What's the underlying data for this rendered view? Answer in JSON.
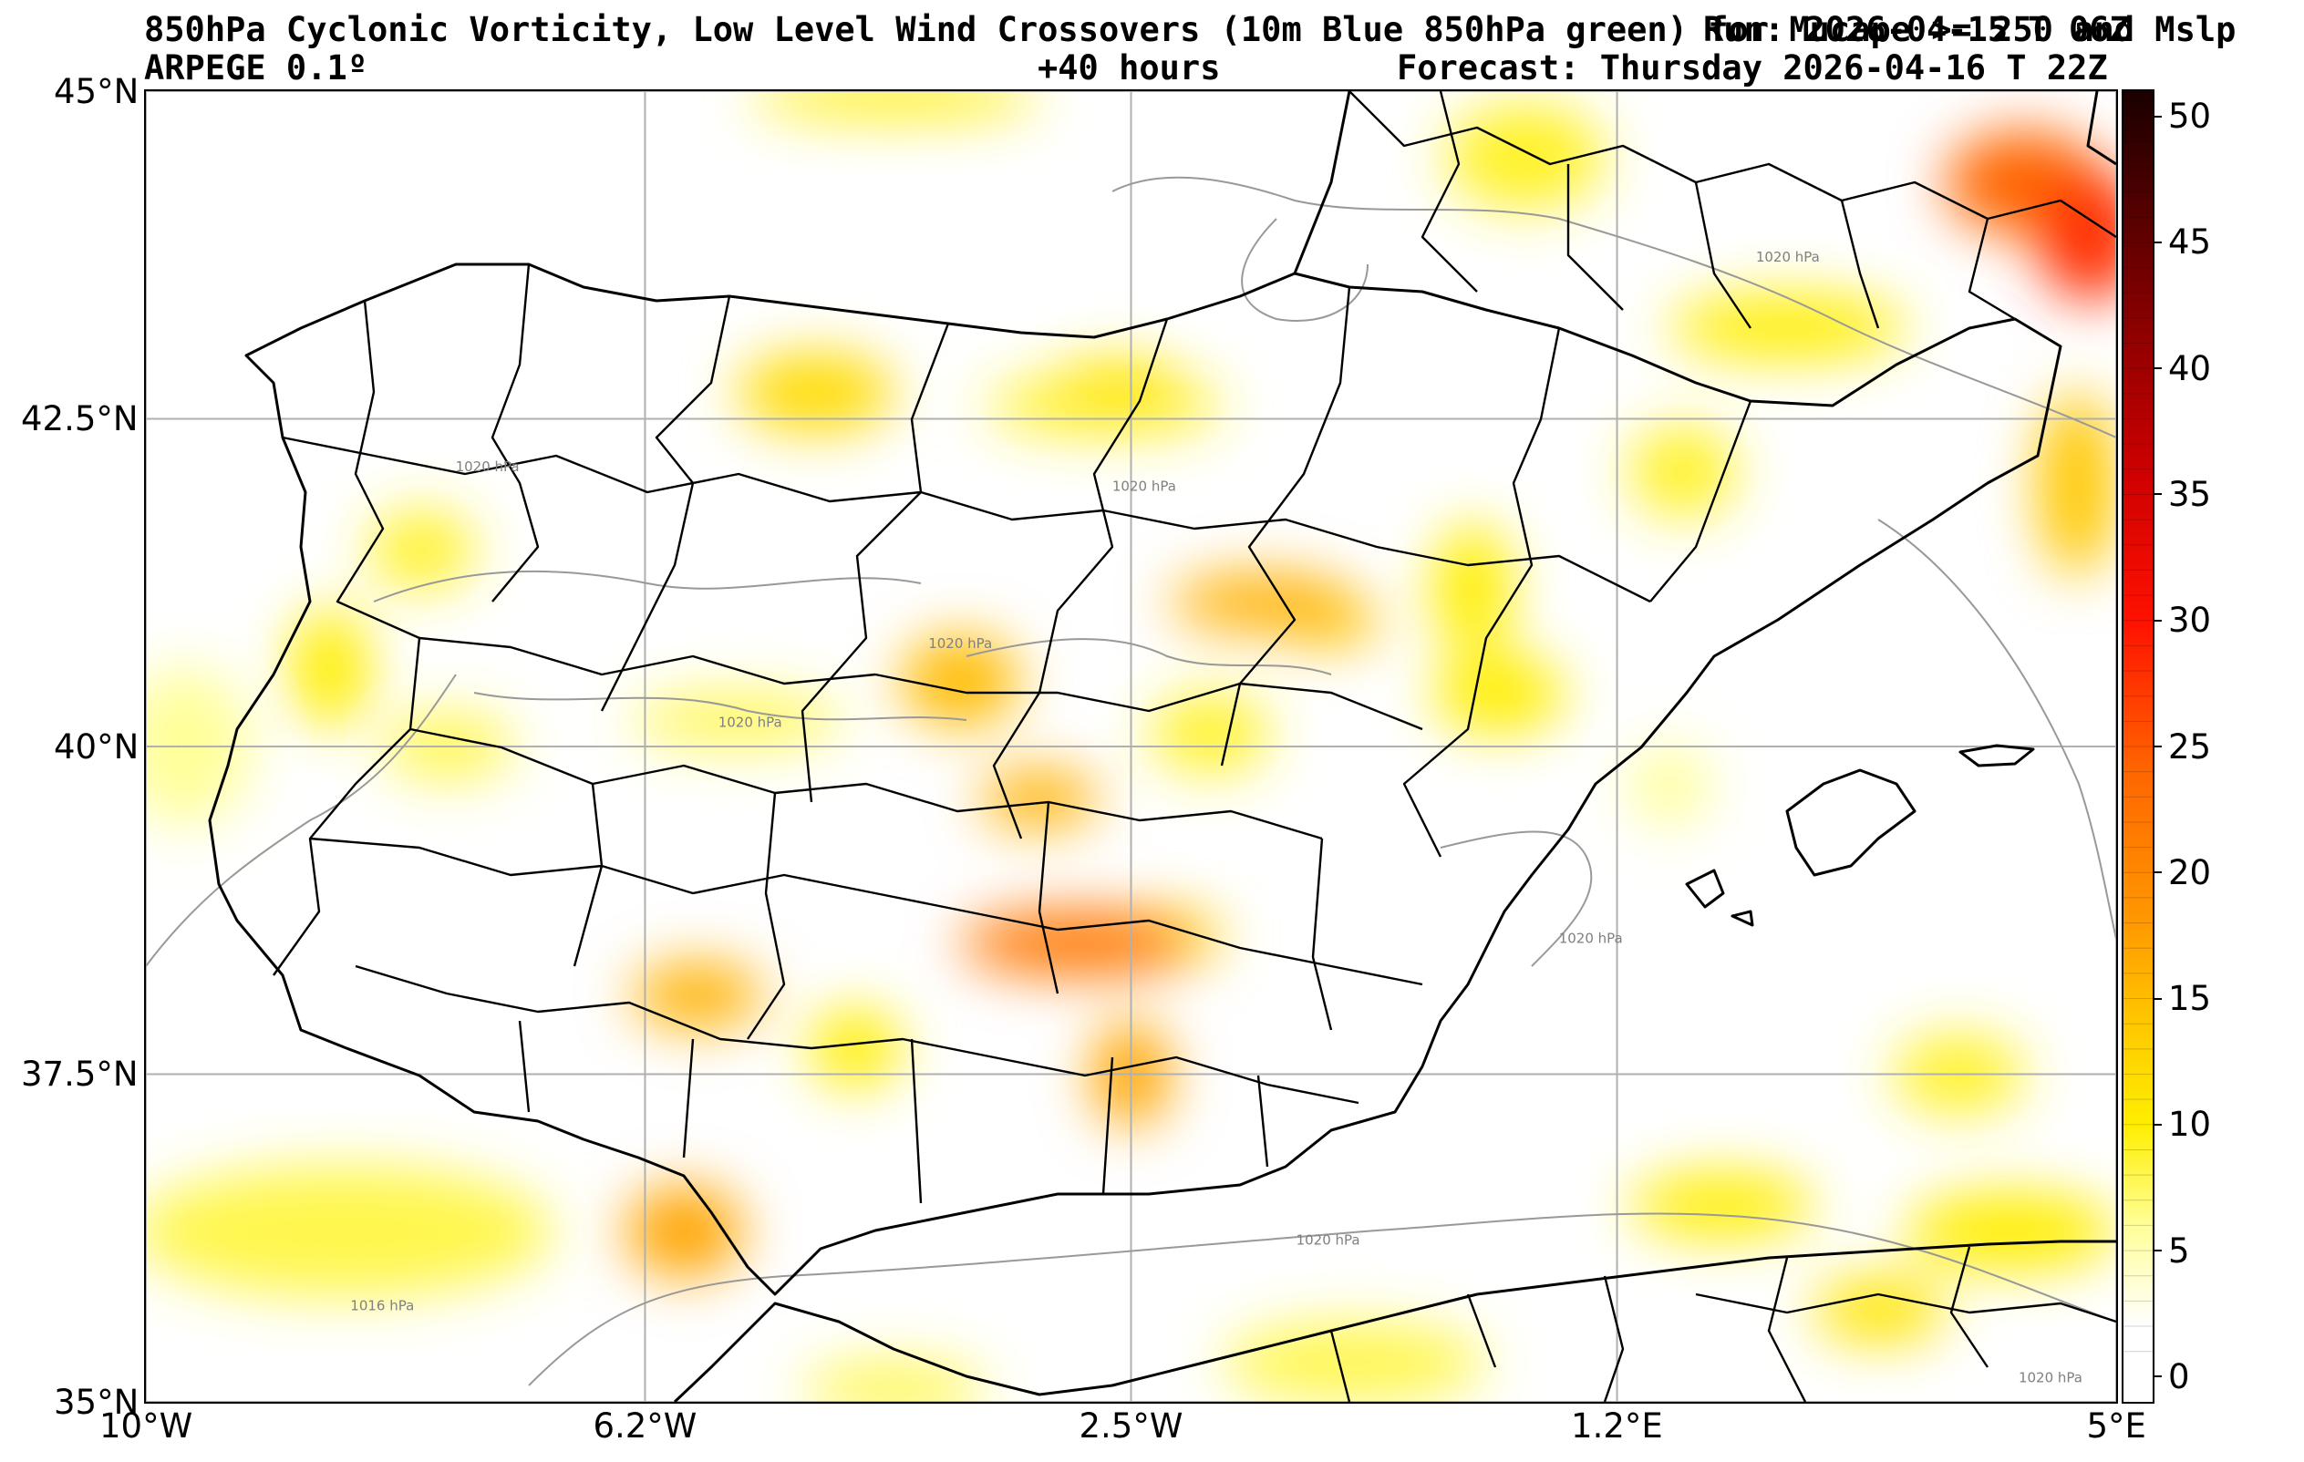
{
  "header": {
    "title_line1": "850hPa Cyclonic Vorticity, Low Level Wind Crossovers (10m Blue 850hPa green) for Mucape >= 250 and Mslp",
    "run_label": "Run: 2026-04-15 T 06Z",
    "model_label": "ARPEGE 0.1º",
    "lead_time_label": "+40 hours",
    "forecast_label": "Forecast: Thursday 2026-04-16 T 22Z"
  },
  "map": {
    "lon_range": [
      -10,
      5
    ],
    "lat_range": [
      35,
      45
    ],
    "x_ticks": [
      {
        "value": -10,
        "label": "10°W"
      },
      {
        "value": -6.2,
        "label": "6.2°W"
      },
      {
        "value": -2.5,
        "label": "2.5°W"
      },
      {
        "value": 1.2,
        "label": "1.2°E"
      },
      {
        "value": 5,
        "label": "5°E"
      }
    ],
    "y_ticks": [
      {
        "value": 45,
        "label": "45°N"
      },
      {
        "value": 42.5,
        "label": "42.5°N"
      },
      {
        "value": 40,
        "label": "40°N"
      },
      {
        "value": 37.5,
        "label": "37.5°N"
      },
      {
        "value": 35,
        "label": "35°N"
      }
    ],
    "isobar_labels": [
      {
        "text": "1020 hPa",
        "lon": -7.4,
        "lat": 42.1
      },
      {
        "text": "1020 hPa",
        "lon": -2.4,
        "lat": 41.95
      },
      {
        "text": "1020 hPa",
        "lon": -3.8,
        "lat": 40.75
      },
      {
        "text": "1020 hPa",
        "lon": -5.4,
        "lat": 40.15
      },
      {
        "text": "1020 hPa",
        "lon": 2.5,
        "lat": 43.7
      },
      {
        "text": "1020 hPa",
        "lon": 1.0,
        "lat": 38.5
      },
      {
        "text": "1020 hPa",
        "lon": -1.0,
        "lat": 36.2
      },
      {
        "text": "1016 hPa",
        "lon": -8.2,
        "lat": 35.7
      },
      {
        "text": "1020 hPa",
        "lon": 4.5,
        "lat": 35.15
      }
    ],
    "vorticity_blobs": [
      {
        "lon": -4.9,
        "lat": 42.7,
        "rx": 0.6,
        "ry": 0.3,
        "v": 12
      },
      {
        "lon": -2.7,
        "lat": 42.6,
        "rx": 0.9,
        "ry": 0.22,
        "v": 9
      },
      {
        "lon": -2.6,
        "lat": 42.75,
        "rx": 0.5,
        "ry": 0.2,
        "v": 11
      },
      {
        "lon": -1.5,
        "lat": 41.1,
        "rx": 0.7,
        "ry": 0.22,
        "v": 16
      },
      {
        "lon": -1.0,
        "lat": 40.95,
        "rx": 0.4,
        "ry": 0.18,
        "v": 14
      },
      {
        "lon": -3.8,
        "lat": 40.5,
        "rx": 0.45,
        "ry": 0.35,
        "v": 15
      },
      {
        "lon": -5.5,
        "lat": 40.2,
        "rx": 0.8,
        "ry": 0.2,
        "v": 8
      },
      {
        "lon": -3.2,
        "lat": 39.6,
        "rx": 0.45,
        "ry": 0.22,
        "v": 16
      },
      {
        "lon": -2.9,
        "lat": 38.5,
        "rx": 0.9,
        "ry": 0.25,
        "v": 22
      },
      {
        "lon": -2.3,
        "lat": 38.55,
        "rx": 0.5,
        "ry": 0.2,
        "v": 12
      },
      {
        "lon": -5.8,
        "lat": 38.1,
        "rx": 0.5,
        "ry": 0.25,
        "v": 16
      },
      {
        "lon": -4.6,
        "lat": 37.7,
        "rx": 0.35,
        "ry": 0.3,
        "v": 10
      },
      {
        "lon": -2.5,
        "lat": 37.5,
        "rx": 0.3,
        "ry": 0.4,
        "v": 17
      },
      {
        "lon": -5.9,
        "lat": 36.3,
        "rx": 0.45,
        "ry": 0.35,
        "v": 17
      },
      {
        "lon": -8.5,
        "lat": 36.3,
        "rx": 1.6,
        "ry": 0.5,
        "v": 8
      },
      {
        "lon": -7.9,
        "lat": 41.5,
        "rx": 0.4,
        "ry": 0.3,
        "v": 9
      },
      {
        "lon": -7.7,
        "lat": 40.0,
        "rx": 0.5,
        "ry": 0.25,
        "v": 8
      },
      {
        "lon": -8.6,
        "lat": 40.6,
        "rx": 0.3,
        "ry": 0.45,
        "v": 10
      },
      {
        "lon": 0.3,
        "lat": 40.4,
        "rx": 0.5,
        "ry": 0.3,
        "v": 10
      },
      {
        "lon": 0.1,
        "lat": 41.2,
        "rx": 0.3,
        "ry": 0.5,
        "v": 10
      },
      {
        "lon": -1.9,
        "lat": 40.1,
        "rx": 0.45,
        "ry": 0.3,
        "v": 9
      },
      {
        "lon": 1.7,
        "lat": 42.1,
        "rx": 0.4,
        "ry": 0.35,
        "v": 9
      },
      {
        "lon": 0.5,
        "lat": 44.5,
        "rx": 0.6,
        "ry": 0.4,
        "v": 9
      },
      {
        "lon": -4.3,
        "lat": 44.95,
        "rx": 1.1,
        "ry": 0.15,
        "v": 10
      },
      {
        "lon": 2.5,
        "lat": 43.2,
        "rx": 0.9,
        "ry": 0.25,
        "v": 10
      },
      {
        "lon": 4.3,
        "lat": 44.3,
        "rx": 0.6,
        "ry": 0.4,
        "v": 24
      },
      {
        "lon": 4.8,
        "lat": 43.9,
        "rx": 0.4,
        "ry": 0.5,
        "v": 28
      },
      {
        "lon": 4.7,
        "lat": 42.0,
        "rx": 0.3,
        "ry": 0.7,
        "v": 14
      },
      {
        "lon": 3.8,
        "lat": 37.5,
        "rx": 0.5,
        "ry": 0.3,
        "v": 9
      },
      {
        "lon": 4.2,
        "lat": 36.3,
        "rx": 0.8,
        "ry": 0.3,
        "v": 10
      },
      {
        "lon": 3.2,
        "lat": 35.7,
        "rx": 0.5,
        "ry": 0.25,
        "v": 11
      },
      {
        "lon": 2.0,
        "lat": 36.5,
        "rx": 0.7,
        "ry": 0.25,
        "v": 10
      },
      {
        "lon": -0.8,
        "lat": 35.3,
        "rx": 1.0,
        "ry": 0.3,
        "v": 8
      },
      {
        "lon": -4.3,
        "lat": 35.1,
        "rx": 0.7,
        "ry": 0.2,
        "v": 8
      },
      {
        "lon": -9.7,
        "lat": 40.0,
        "rx": 0.5,
        "ry": 0.6,
        "v": 6
      },
      {
        "lon": 1.6,
        "lat": 39.7,
        "rx": 0.3,
        "ry": 0.3,
        "v": 6
      }
    ],
    "colors": {
      "frame": "#000000",
      "grid": "#b0b0b0",
      "borders": "#000000",
      "isobars": "#999999"
    }
  },
  "colorbar": {
    "range": [
      -1,
      51
    ],
    "tick_values": [
      0,
      5,
      10,
      15,
      20,
      25,
      30,
      35,
      40,
      45,
      50
    ],
    "color_stops": [
      {
        "value": -1,
        "color": "#ffffff"
      },
      {
        "value": 2,
        "color": "#ffffff"
      },
      {
        "value": 6,
        "color": "#ffff99"
      },
      {
        "value": 10,
        "color": "#ffee00"
      },
      {
        "value": 14,
        "color": "#ffc800"
      },
      {
        "value": 18,
        "color": "#ff9900"
      },
      {
        "value": 24,
        "color": "#ff6600"
      },
      {
        "value": 30,
        "color": "#ff1100"
      },
      {
        "value": 36,
        "color": "#cc0000"
      },
      {
        "value": 42,
        "color": "#880000"
      },
      {
        "value": 51,
        "color": "#1a0000"
      }
    ]
  }
}
